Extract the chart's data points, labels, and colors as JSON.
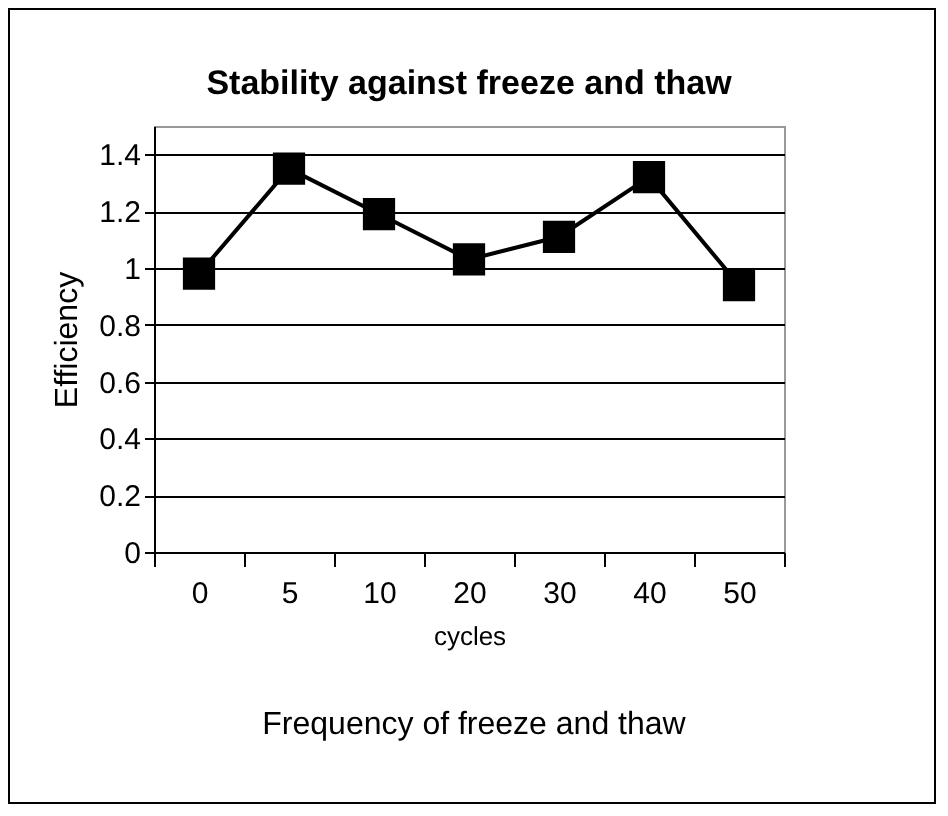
{
  "chart_data": {
    "type": "line",
    "title": "Stability against freeze and thaw",
    "xlabel": "cycles",
    "ylabel": "Efficiency",
    "categories": [
      "0",
      "5",
      "10",
      "20",
      "30",
      "40",
      "50"
    ],
    "series": [
      {
        "color": "#000000",
        "values": [
          0.98,
          1.35,
          1.19,
          1.03,
          1.11,
          1.32,
          0.94
        ]
      }
    ],
    "ylim": [
      0,
      1.5
    ],
    "yticks": [
      0,
      0.2,
      0.4,
      0.6,
      0.8,
      1,
      1.2,
      1.4
    ],
    "grid": "y",
    "marker": "square",
    "line_style": "solid",
    "legend": false,
    "annotations": [
      "Frequency of freeze and thaw"
    ]
  }
}
